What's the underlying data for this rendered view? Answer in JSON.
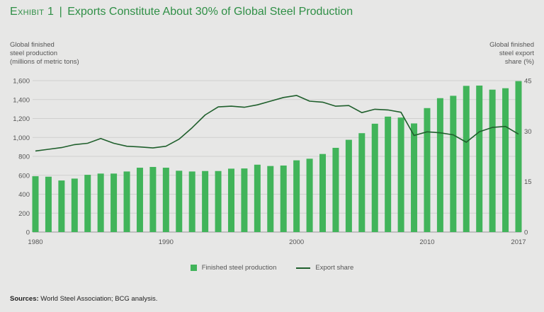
{
  "title": {
    "exhibit": "Exhibit 1",
    "separator": "|",
    "text": "Exports Constitute About 30% of Global Steel Production"
  },
  "colors": {
    "bar": "#41b45a",
    "line": "#1f5f2c",
    "title": "#2f8f46",
    "grid": "#cfcfce"
  },
  "chart_data": {
    "type": "bar",
    "title": "Exports Constitute About 30% of Global Steel Production",
    "x_labels_shown": [
      "1980",
      "1990",
      "2000",
      "2010",
      "2017"
    ],
    "y_left_label": [
      "Global finished",
      "steel production",
      "(millions of metric tons)"
    ],
    "y_right_label": [
      "Global finished",
      "steel export",
      "share (%)"
    ],
    "y_left_ticks": [
      "0",
      "200",
      "400",
      "600",
      "800",
      "1,000",
      "1,200",
      "1,400",
      "1,600"
    ],
    "y_right_ticks": [
      "0",
      "15",
      "30",
      "45"
    ],
    "ylim_left": [
      0,
      1600
    ],
    "ylim_right": [
      0,
      45
    ],
    "grid": true,
    "categories": [
      1980,
      1981,
      1982,
      1983,
      1984,
      1985,
      1986,
      1987,
      1988,
      1989,
      1990,
      1991,
      1992,
      1993,
      1994,
      1995,
      1996,
      1997,
      1998,
      1999,
      2000,
      2001,
      2002,
      2003,
      2004,
      2005,
      2006,
      2007,
      2008,
      2009,
      2010,
      2011,
      2012,
      2013,
      2014,
      2015,
      2016,
      2017
    ],
    "series": [
      {
        "name": "Finished steel production",
        "kind": "bar",
        "axis": "left",
        "values": [
          590,
          585,
          545,
          565,
          605,
          618,
          618,
          640,
          680,
          688,
          680,
          648,
          640,
          645,
          645,
          670,
          672,
          712,
          698,
          703,
          758,
          775,
          825,
          890,
          975,
          1045,
          1145,
          1220,
          1210,
          1148,
          1310,
          1415,
          1440,
          1545,
          1548,
          1505,
          1520,
          1595
        ]
      },
      {
        "name": "Export share",
        "kind": "line",
        "axis": "right",
        "values": [
          24.1,
          24.6,
          25.1,
          26.0,
          26.4,
          27.8,
          26.4,
          25.5,
          25.3,
          25.0,
          25.5,
          27.6,
          31.0,
          34.8,
          37.2,
          37.4,
          37.1,
          37.8,
          38.9,
          40.0,
          40.6,
          38.9,
          38.6,
          37.4,
          37.6,
          35.5,
          36.5,
          36.3,
          35.6,
          28.7,
          29.8,
          29.5,
          28.9,
          26.7,
          29.8,
          31.1,
          31.4,
          29.1
        ]
      }
    ],
    "legend_position": "bottom"
  },
  "legend": {
    "bar_label": "Finished steel production",
    "line_label": "Export share"
  },
  "source": {
    "label": "Sources:",
    "text": " World Steel Association; BCG analysis."
  }
}
